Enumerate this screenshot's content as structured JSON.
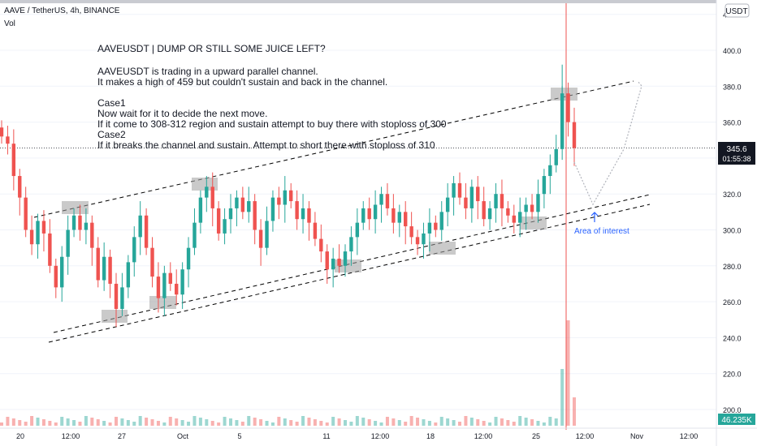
{
  "header": {
    "symbol_line": "AAVE / TetherUS, 4h, BINANCE",
    "volume_label": "Vol"
  },
  "currency_button": "USDT",
  "note": {
    "title": "AAVEUSDT | DUMP OR STILL SOME JUICE LEFT?",
    "lines": [
      "AAVEUSDT is trading in a upward parallel channel.",
      "It makes a high of 459 but couldn't sustain and back in the channel.",
      "",
      "Case1",
      "Now wait for it to decide the next move.",
      "If it come to 308-312 region and sustain attempt to buy there with stoploss of 300",
      "Case2",
      "If it breaks the channel and sustain. Attempt to short there with stoploss of 310"
    ]
  },
  "annotation": "Area of interest",
  "price_badge": {
    "price": "345.6",
    "countdown": "01:55:38"
  },
  "volume_badge": "46.235K",
  "colors": {
    "up": "#26a69a",
    "down": "#ef5350",
    "badge": "#131722",
    "annotation": "#2962ff",
    "grid": "#f0f3fa"
  },
  "chart_data": {
    "type": "candlestick",
    "y_axis": {
      "ticks": [
        200.0,
        220.0,
        240.0,
        260.0,
        280.0,
        300.0,
        320.0,
        340.0,
        360.0,
        380.0,
        400.0,
        420.0
      ],
      "tick_labels": [
        "200.0",
        "220.0",
        "240.0",
        "260.0",
        "280.0",
        "300.0",
        "320.0",
        "340.0",
        "360.0",
        "380.0",
        "400.0",
        "420.0"
      ],
      "range": [
        196,
        442
      ]
    },
    "x_axis": {
      "tick_labels": [
        "20",
        "12:00",
        "27",
        "Oct",
        "5",
        "11",
        "12:00",
        "18",
        "12:00",
        "25",
        "12:00",
        "Nov",
        "12:00"
      ]
    },
    "last_price": 345.6,
    "series_summary": {
      "high_marked": 459,
      "levels": [
        300,
        308,
        310,
        312
      ]
    },
    "candles": [
      {
        "o": 357,
        "c": 352
      },
      {
        "o": 352,
        "c": 348
      },
      {
        "o": 348,
        "c": 330
      },
      {
        "o": 330,
        "c": 318
      },
      {
        "o": 318,
        "c": 300
      },
      {
        "o": 300,
        "c": 292
      },
      {
        "o": 292,
        "c": 305
      },
      {
        "o": 305,
        "c": 298
      },
      {
        "o": 298,
        "c": 280
      },
      {
        "o": 280,
        "c": 268
      },
      {
        "o": 268,
        "c": 285
      },
      {
        "o": 285,
        "c": 300
      },
      {
        "o": 300,
        "c": 308
      },
      {
        "o": 308,
        "c": 300
      },
      {
        "o": 300,
        "c": 304
      },
      {
        "o": 304,
        "c": 290
      },
      {
        "o": 290,
        "c": 272
      },
      {
        "o": 272,
        "c": 285
      },
      {
        "o": 285,
        "c": 270
      },
      {
        "o": 270,
        "c": 256
      },
      {
        "o": 256,
        "c": 268
      },
      {
        "o": 268,
        "c": 282
      },
      {
        "o": 282,
        "c": 296
      },
      {
        "o": 296,
        "c": 308
      },
      {
        "o": 308,
        "c": 290
      },
      {
        "o": 290,
        "c": 274
      },
      {
        "o": 274,
        "c": 262
      },
      {
        "o": 262,
        "c": 276
      },
      {
        "o": 276,
        "c": 270
      },
      {
        "o": 270,
        "c": 264
      },
      {
        "o": 264,
        "c": 278
      },
      {
        "o": 278,
        "c": 290
      },
      {
        "o": 290,
        "c": 304
      },
      {
        "o": 304,
        "c": 318
      },
      {
        "o": 318,
        "c": 324
      },
      {
        "o": 324,
        "c": 312
      },
      {
        "o": 312,
        "c": 298
      },
      {
        "o": 298,
        "c": 306
      },
      {
        "o": 306,
        "c": 312
      },
      {
        "o": 312,
        "c": 318
      },
      {
        "o": 318,
        "c": 310
      },
      {
        "o": 310,
        "c": 316
      },
      {
        "o": 316,
        "c": 300
      },
      {
        "o": 300,
        "c": 290
      },
      {
        "o": 290,
        "c": 305
      },
      {
        "o": 305,
        "c": 318
      },
      {
        "o": 318,
        "c": 314
      },
      {
        "o": 314,
        "c": 322
      },
      {
        "o": 322,
        "c": 316
      },
      {
        "o": 316,
        "c": 306
      },
      {
        "o": 306,
        "c": 312
      },
      {
        "o": 312,
        "c": 304
      },
      {
        "o": 304,
        "c": 295
      },
      {
        "o": 295,
        "c": 288
      },
      {
        "o": 288,
        "c": 278
      },
      {
        "o": 278,
        "c": 284
      },
      {
        "o": 284,
        "c": 280
      },
      {
        "o": 280,
        "c": 288
      },
      {
        "o": 288,
        "c": 296
      },
      {
        "o": 296,
        "c": 304
      },
      {
        "o": 304,
        "c": 312
      },
      {
        "o": 312,
        "c": 306
      },
      {
        "o": 306,
        "c": 314
      },
      {
        "o": 314,
        "c": 320
      },
      {
        "o": 320,
        "c": 312
      },
      {
        "o": 312,
        "c": 304
      },
      {
        "o": 304,
        "c": 310
      },
      {
        "o": 310,
        "c": 302
      },
      {
        "o": 302,
        "c": 296
      },
      {
        "o": 296,
        "c": 292
      },
      {
        "o": 292,
        "c": 298
      },
      {
        "o": 298,
        "c": 304
      },
      {
        "o": 304,
        "c": 300
      },
      {
        "o": 300,
        "c": 310
      },
      {
        "o": 310,
        "c": 318
      },
      {
        "o": 318,
        "c": 326
      },
      {
        "o": 326,
        "c": 318
      },
      {
        "o": 318,
        "c": 312
      },
      {
        "o": 312,
        "c": 324
      },
      {
        "o": 324,
        "c": 316
      },
      {
        "o": 316,
        "c": 306
      },
      {
        "o": 306,
        "c": 312
      },
      {
        "o": 312,
        "c": 320
      },
      {
        "o": 320,
        "c": 312
      },
      {
        "o": 312,
        "c": 308
      },
      {
        "o": 308,
        "c": 304
      },
      {
        "o": 304,
        "c": 310
      },
      {
        "o": 310,
        "c": 314
      },
      {
        "o": 314,
        "c": 310
      },
      {
        "o": 310,
        "c": 320
      },
      {
        "o": 320,
        "c": 330
      },
      {
        "o": 330,
        "c": 336
      },
      {
        "o": 336,
        "c": 345
      },
      {
        "o": 345,
        "c": 376
      },
      {
        "o": 376,
        "c": 360
      },
      {
        "o": 360,
        "c": 345.6
      }
    ]
  }
}
